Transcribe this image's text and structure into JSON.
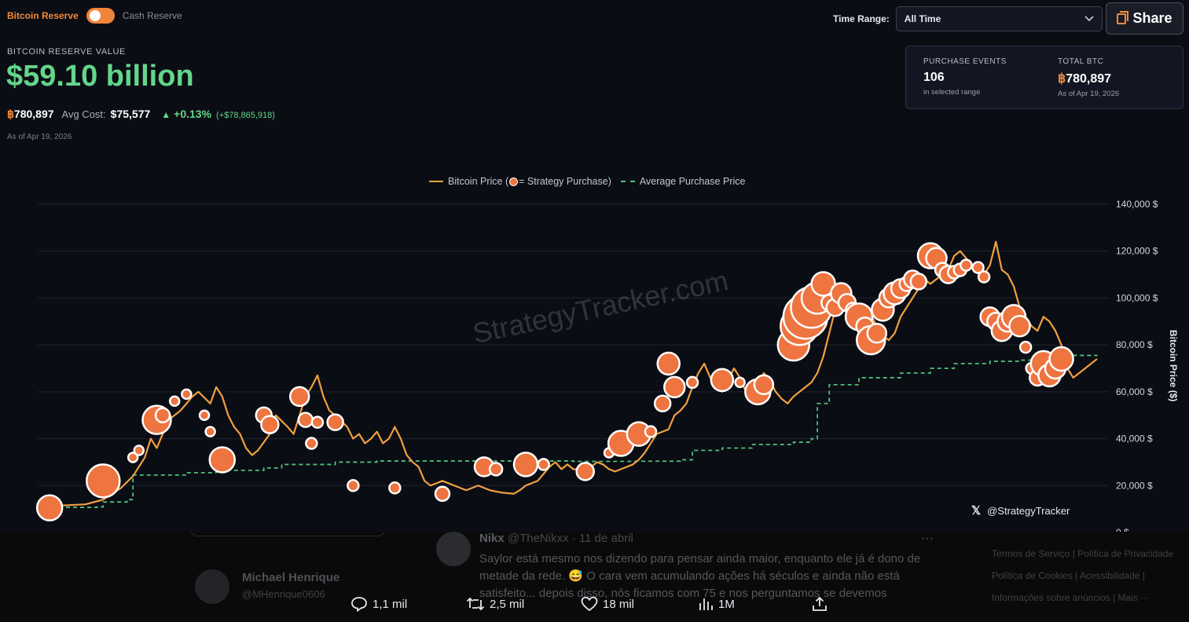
{
  "toggle": {
    "left_label": "Bitcoin Reserve",
    "right_label": "Cash Reserve"
  },
  "time_range": {
    "label": "Time Range:",
    "value": "All Time"
  },
  "share": {
    "label": "Share"
  },
  "reserve": {
    "label": "BITCOIN RESERVE VALUE",
    "value": "$59.10 billion",
    "btc_symbol": "฿",
    "btc_amount": "780,897",
    "avg_cost_label": "Avg Cost:",
    "avg_cost": "$75,577",
    "change_arrow": "▲",
    "change_pct": "+0.13%",
    "change_abs": "(+$78,865,918)",
    "as_of": "As of Apr 19, 2026"
  },
  "card": {
    "events_label": "PURCHASE EVENTS",
    "events_value": "106",
    "events_sub": "in selected range",
    "btc_label": "TOTAL BTC",
    "btc_symbol": "฿",
    "btc_value": "780,897",
    "btc_sub": "As of Apr 19, 2026"
  },
  "legend": {
    "price_label_pre": "Bitcoin Price (",
    "price_label_post": " = Strategy Purchase)",
    "avg_label": "Average Purchase Price"
  },
  "watermark": "StrategyTracker.com",
  "x_handle": "@StrategyTracker",
  "y_axis_label": "Bitcoin Price ($)",
  "colors": {
    "price": "#f0a040",
    "purchase": "#ee7440",
    "avg": "#4cc07a",
    "value_green": "#63d68a",
    "accent": "#f28a3a"
  },
  "chart_data": {
    "type": "line",
    "ylim": [
      0,
      140000
    ],
    "y_ticks": [
      "0 $",
      "20,000 $",
      "40,000 $",
      "60,000 $",
      "80,000 $",
      "100,000 $",
      "120,000 $",
      "140,000 $"
    ],
    "grid": true,
    "legend_position": "top-center",
    "series": [
      {
        "name": "Bitcoin Price",
        "kind": "line",
        "points": [
          [
            0,
            11000
          ],
          [
            4,
            11500
          ],
          [
            8,
            12000
          ],
          [
            11,
            14000
          ],
          [
            14,
            19000
          ],
          [
            16,
            24000
          ],
          [
            18,
            32000
          ],
          [
            19,
            40000
          ],
          [
            20,
            36000
          ],
          [
            22,
            48000
          ],
          [
            24,
            52000
          ],
          [
            26,
            58000
          ],
          [
            27,
            60000
          ],
          [
            29,
            55000
          ],
          [
            30,
            62000
          ],
          [
            31,
            58000
          ],
          [
            32,
            50000
          ],
          [
            33,
            45000
          ],
          [
            34,
            42000
          ],
          [
            35,
            36000
          ],
          [
            36,
            33000
          ],
          [
            37,
            35000
          ],
          [
            39,
            42000
          ],
          [
            40,
            50000
          ],
          [
            42,
            45000
          ],
          [
            43,
            42000
          ],
          [
            45,
            58000
          ],
          [
            46,
            62000
          ],
          [
            47,
            67000
          ],
          [
            48,
            58000
          ],
          [
            49,
            52000
          ],
          [
            50,
            50000
          ],
          [
            52,
            45000
          ],
          [
            53,
            40000
          ],
          [
            54,
            42000
          ],
          [
            55,
            38000
          ],
          [
            56,
            40000
          ],
          [
            57,
            43000
          ],
          [
            58,
            38000
          ],
          [
            59,
            40000
          ],
          [
            60,
            45000
          ],
          [
            61,
            40000
          ],
          [
            62,
            33000
          ],
          [
            63,
            30000
          ],
          [
            64,
            28000
          ],
          [
            65,
            22000
          ],
          [
            66,
            20000
          ],
          [
            68,
            22000
          ],
          [
            70,
            20000
          ],
          [
            72,
            18000
          ],
          [
            74,
            20000
          ],
          [
            76,
            18000
          ],
          [
            78,
            17000
          ],
          [
            80,
            16500
          ],
          [
            81,
            18000
          ],
          [
            82,
            20000
          ],
          [
            84,
            22000
          ],
          [
            85,
            25000
          ],
          [
            86,
            28000
          ],
          [
            87,
            30000
          ],
          [
            88,
            27000
          ],
          [
            89,
            29000
          ],
          [
            90,
            27000
          ],
          [
            92,
            26500
          ],
          [
            93,
            28000
          ],
          [
            94,
            30000
          ],
          [
            95,
            29000
          ],
          [
            96,
            27000
          ],
          [
            97,
            26000
          ],
          [
            98,
            27000
          ],
          [
            100,
            29000
          ],
          [
            101,
            31000
          ],
          [
            102,
            34000
          ],
          [
            103,
            38000
          ],
          [
            104,
            42000
          ],
          [
            105,
            43000
          ],
          [
            106,
            44000
          ],
          [
            107,
            50000
          ],
          [
            108,
            52000
          ],
          [
            109,
            55000
          ],
          [
            110,
            62000
          ],
          [
            111,
            68000
          ],
          [
            112,
            72000
          ],
          [
            113,
            66000
          ],
          [
            114,
            62000
          ],
          [
            115,
            60000
          ],
          [
            116,
            65000
          ],
          [
            117,
            70000
          ],
          [
            118,
            66000
          ],
          [
            119,
            60000
          ],
          [
            120,
            58000
          ],
          [
            121,
            63000
          ],
          [
            122,
            68000
          ],
          [
            123,
            65000
          ],
          [
            124,
            60000
          ],
          [
            125,
            57000
          ],
          [
            126,
            55000
          ],
          [
            127,
            58000
          ],
          [
            128,
            60000
          ],
          [
            129,
            62000
          ],
          [
            130,
            64000
          ],
          [
            131,
            68000
          ],
          [
            132,
            75000
          ],
          [
            133,
            85000
          ],
          [
            134,
            95000
          ],
          [
            135,
            100000
          ],
          [
            136,
            105000
          ],
          [
            137,
            100000
          ],
          [
            138,
            95000
          ],
          [
            139,
            97000
          ],
          [
            140,
            93000
          ],
          [
            141,
            88000
          ],
          [
            142,
            84000
          ],
          [
            143,
            82000
          ],
          [
            144,
            85000
          ],
          [
            145,
            92000
          ],
          [
            146,
            96000
          ],
          [
            147,
            100000
          ],
          [
            148,
            104000
          ],
          [
            149,
            108000
          ],
          [
            150,
            106000
          ],
          [
            151,
            108000
          ],
          [
            152,
            110000
          ],
          [
            153,
            112000
          ],
          [
            154,
            118000
          ],
          [
            155,
            120000
          ],
          [
            156,
            117000
          ],
          [
            157,
            114000
          ],
          [
            158,
            112000
          ],
          [
            159,
            110000
          ],
          [
            160,
            114000
          ],
          [
            161,
            124000
          ],
          [
            162,
            112000
          ],
          [
            163,
            110000
          ],
          [
            164,
            105000
          ],
          [
            165,
            96000
          ],
          [
            166,
            92000
          ],
          [
            167,
            88000
          ],
          [
            168,
            86000
          ],
          [
            169,
            92000
          ],
          [
            170,
            90000
          ],
          [
            171,
            86000
          ],
          [
            172,
            80000
          ],
          [
            173,
            70000
          ],
          [
            174,
            66000
          ],
          [
            175,
            68000
          ],
          [
            176,
            70000
          ],
          [
            177,
            72000
          ],
          [
            178,
            74000
          ]
        ]
      },
      {
        "name": "Average Purchase Price",
        "kind": "step",
        "points": [
          [
            0,
            10700
          ],
          [
            10,
            10900
          ],
          [
            11,
            13000
          ],
          [
            15,
            14000
          ],
          [
            16,
            24500
          ],
          [
            25,
            25500
          ],
          [
            30,
            26500
          ],
          [
            38,
            27500
          ],
          [
            41,
            29000
          ],
          [
            50,
            30000
          ],
          [
            57,
            30500
          ],
          [
            72,
            30500
          ],
          [
            90,
            30300
          ],
          [
            100,
            30400
          ],
          [
            108,
            31000
          ],
          [
            110,
            35000
          ],
          [
            115,
            36000
          ],
          [
            120,
            37500
          ],
          [
            127,
            38500
          ],
          [
            130,
            40000
          ],
          [
            131,
            55000
          ],
          [
            133,
            63000
          ],
          [
            138,
            66000
          ],
          [
            145,
            68000
          ],
          [
            150,
            70000
          ],
          [
            154,
            72000
          ],
          [
            160,
            73000
          ],
          [
            165,
            73500
          ],
          [
            169,
            74500
          ],
          [
            172,
            75500
          ],
          [
            178,
            75577
          ]
        ]
      },
      {
        "name": "Strategy Purchase",
        "kind": "bubbles",
        "points": [
          [
            2,
            10500,
            16
          ],
          [
            11,
            22000,
            21
          ],
          [
            16,
            32000,
            6
          ],
          [
            17,
            35000,
            6
          ],
          [
            20,
            48000,
            18
          ],
          [
            21,
            50000,
            9
          ],
          [
            23,
            56000,
            6
          ],
          [
            25,
            59000,
            6
          ],
          [
            28,
            50000,
            6
          ],
          [
            29,
            43000,
            6
          ],
          [
            31,
            31000,
            16
          ],
          [
            38,
            50000,
            10
          ],
          [
            39,
            46000,
            11
          ],
          [
            44,
            58000,
            12
          ],
          [
            45,
            48000,
            9
          ],
          [
            46,
            38000,
            7
          ],
          [
            47,
            47000,
            7
          ],
          [
            50,
            47000,
            10
          ],
          [
            53,
            20000,
            7
          ],
          [
            60,
            19000,
            7
          ],
          [
            68,
            16500,
            9
          ],
          [
            75,
            28000,
            12
          ],
          [
            77,
            27000,
            8
          ],
          [
            82,
            29000,
            15
          ],
          [
            85,
            29000,
            7
          ],
          [
            92,
            26000,
            11
          ],
          [
            96,
            34000,
            6
          ],
          [
            98,
            38000,
            16
          ],
          [
            101,
            42000,
            15
          ],
          [
            103,
            43000,
            7
          ],
          [
            105,
            55000,
            10
          ],
          [
            106,
            72000,
            14
          ],
          [
            107,
            62000,
            13
          ],
          [
            110,
            64000,
            7
          ],
          [
            115,
            65000,
            14
          ],
          [
            118,
            64000,
            6
          ],
          [
            121,
            60000,
            16
          ],
          [
            122,
            63000,
            12
          ],
          [
            127,
            80000,
            20
          ],
          [
            128,
            88000,
            24
          ],
          [
            129,
            92000,
            28
          ],
          [
            130,
            96000,
            26
          ],
          [
            131,
            100000,
            20
          ],
          [
            132,
            106000,
            15
          ],
          [
            133,
            98000,
            10
          ],
          [
            134,
            96000,
            11
          ],
          [
            135,
            102000,
            13
          ],
          [
            136,
            98000,
            11
          ],
          [
            137,
            95000,
            9
          ],
          [
            138,
            92000,
            17
          ],
          [
            139,
            88000,
            11
          ],
          [
            140,
            82000,
            18
          ],
          [
            141,
            85000,
            12
          ],
          [
            142,
            95000,
            14
          ],
          [
            143,
            100000,
            12
          ],
          [
            144,
            102000,
            14
          ],
          [
            145,
            104000,
            12
          ],
          [
            146,
            106000,
            9
          ],
          [
            147,
            108000,
            11
          ],
          [
            148,
            107000,
            10
          ],
          [
            150,
            118000,
            16
          ],
          [
            151,
            117000,
            13
          ],
          [
            152,
            112000,
            9
          ],
          [
            153,
            110000,
            11
          ],
          [
            154,
            111000,
            8
          ],
          [
            155,
            112000,
            8
          ],
          [
            156,
            114000,
            7
          ],
          [
            158,
            113000,
            7
          ],
          [
            159,
            109000,
            7
          ],
          [
            160,
            92000,
            12
          ],
          [
            161,
            90000,
            11
          ],
          [
            162,
            86000,
            13
          ],
          [
            163,
            90000,
            13
          ],
          [
            164,
            92000,
            15
          ],
          [
            165,
            88000,
            13
          ],
          [
            166,
            79000,
            7
          ],
          [
            167,
            70000,
            7
          ],
          [
            168,
            66000,
            10
          ],
          [
            169,
            72000,
            16
          ],
          [
            170,
            67000,
            14
          ],
          [
            171,
            70000,
            13
          ],
          [
            172,
            74000,
            15
          ]
        ]
      }
    ]
  },
  "underlay": {
    "author": "Nikx",
    "author_handle": "@TheNikxx · 11 de abril",
    "text": "Saylor está mesmo nos dizendo para pensar ainda maior, enquanto ele já é dono de metade da rede. 😅 O cara vem acumulando ações há séculos e ainda não está satisfeito... depois disso, nós ficamos com 75 e nos perguntamos se devemos",
    "name2": "Michael Henrique",
    "handle2": "@MHenrique0606",
    "side_links": [
      "Termos de Serviço | Política de Privacidade",
      "Política de Cookies | Acessibilidade |",
      "Informações sobre anúncios | Mais ···"
    ],
    "more": "···",
    "actions": {
      "replies": "1,1 mil",
      "reposts": "2,5 mil",
      "likes": "18 mil",
      "views": "1M"
    }
  }
}
